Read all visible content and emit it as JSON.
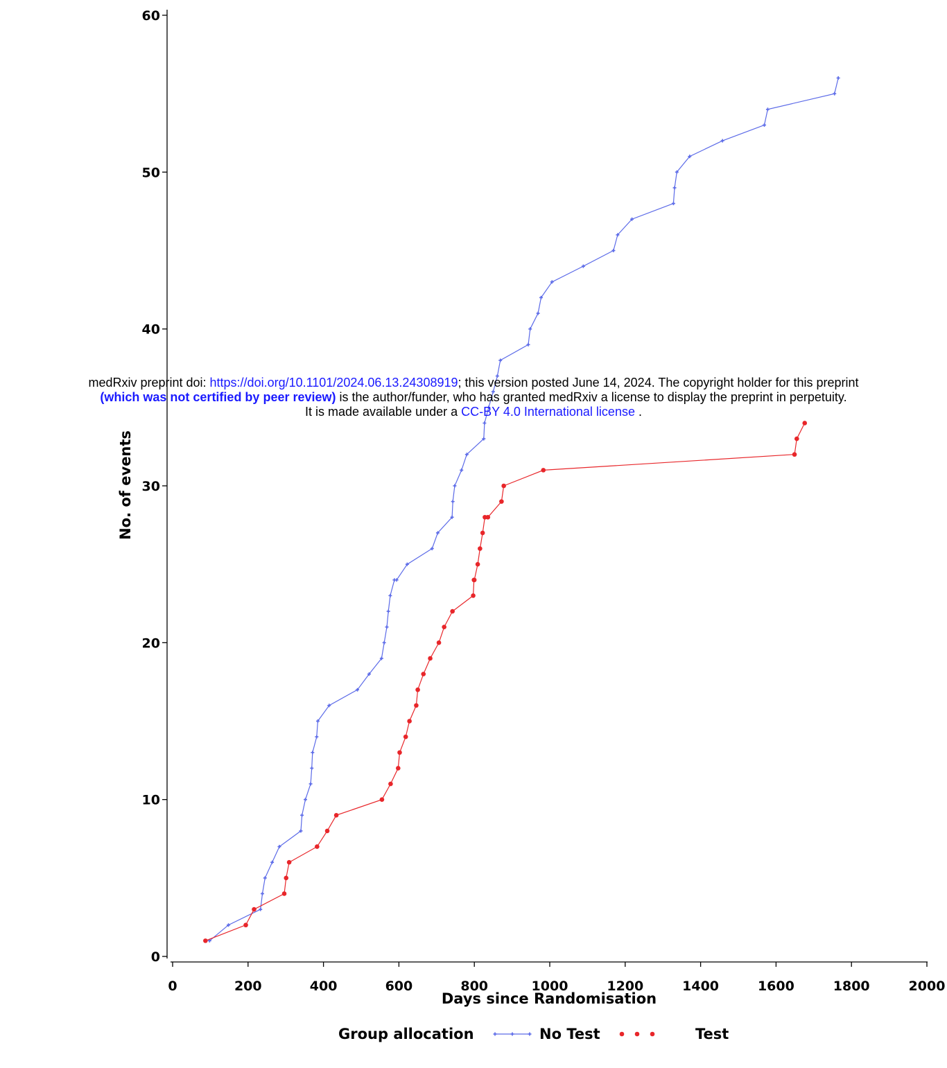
{
  "chart_data": {
    "type": "line",
    "xlabel": "Days since Randomisation",
    "ylabel": "No. of events",
    "xlim": [
      0,
      2000
    ],
    "ylim": [
      0,
      60
    ],
    "xticks": [
      "0",
      "200",
      "400",
      "600",
      "800",
      "1000",
      "1200",
      "1400",
      "1600",
      "1800",
      "2000"
    ],
    "yticks": [
      "0",
      "10",
      "20",
      "30",
      "40",
      "50",
      "60"
    ],
    "grid": false,
    "legend": {
      "title": "Group allocation",
      "placement": "bottom",
      "entries": [
        "No Test",
        "Test"
      ]
    },
    "series": [
      {
        "name": "No Test",
        "color": "#5b6ae8",
        "marker": "plus",
        "x": [
          98,
          148,
          233,
          238,
          245,
          264,
          283,
          340,
          343,
          352,
          366,
          369,
          371,
          382,
          385,
          415,
          490,
          521,
          554,
          561,
          568,
          572,
          577,
          588,
          594,
          622,
          688,
          703,
          741,
          743,
          748,
          766,
          780,
          825,
          827,
          838,
          850,
          861,
          869,
          943,
          948,
          969,
          977,
          1006,
          1089,
          1169,
          1180,
          1218,
          1328,
          1331,
          1337,
          1371,
          1458,
          1569,
          1578,
          1755,
          1765
        ],
        "y": [
          1,
          2,
          3,
          4,
          5,
          6,
          7,
          8,
          9,
          10,
          11,
          12,
          13,
          14,
          15,
          16,
          17,
          18,
          19,
          20,
          21,
          22,
          23,
          24,
          24,
          25,
          26,
          27,
          28,
          29,
          30,
          31,
          32,
          33,
          34,
          35,
          36,
          37,
          38,
          39,
          40,
          41,
          42,
          43,
          44,
          45,
          46,
          47,
          48,
          49,
          50,
          51,
          52,
          53,
          54,
          55,
          56
        ]
      },
      {
        "name": "Test",
        "color": "#e8262a",
        "marker": "dot",
        "x": [
          87,
          194,
          216,
          296,
          301,
          309,
          383,
          410,
          434,
          555,
          578,
          598,
          602,
          618,
          628,
          646,
          650,
          665,
          683,
          706,
          720,
          742,
          797,
          799,
          800,
          809,
          815,
          822,
          828,
          836,
          872,
          878,
          983,
          1649,
          1655,
          1676
        ],
        "y": [
          1,
          2,
          3,
          4,
          5,
          6,
          7,
          8,
          9,
          10,
          11,
          12,
          13,
          14,
          15,
          16,
          17,
          18,
          19,
          20,
          21,
          22,
          23,
          24,
          24,
          25,
          26,
          27,
          28,
          28,
          29,
          30,
          31,
          32,
          33,
          34
        ]
      }
    ]
  },
  "banner": {
    "line1_text": "medRxiv preprint doi: ",
    "line1_link": "https://doi.org/10.1101/2024.06.13.24308919",
    "line1_rest": "; this version posted June 14, 2024. The copyright holder for this preprint",
    "line2_bold": "(which was not certified by peer review)",
    "line2_rest": " is the author/funder, who has granted medRxiv a license to display the preprint in perpetuity.",
    "line3_text": "It is made available under a ",
    "line3_link": "CC-BY 4.0 International license",
    "line3_rest": " ."
  }
}
